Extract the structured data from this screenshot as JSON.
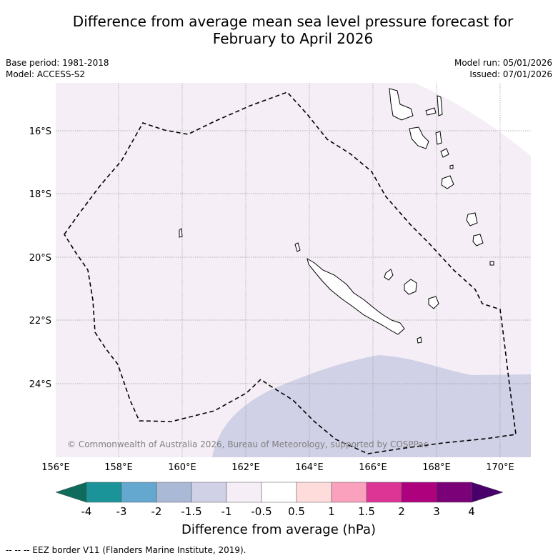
{
  "title_line1": "Difference from average mean sea level pressure forecast for",
  "title_line2": "February to April 2026",
  "base_period": "Base period: 1981-2018",
  "model": "Model: ACCESS-S2",
  "model_run": "Model run: 05/01/2026",
  "issued": "Issued: 07/01/2026",
  "lat_labels": [
    "16°S",
    "18°S",
    "20°S",
    "22°S",
    "24°S"
  ],
  "lon_labels": [
    "156°E",
    "158°E",
    "160°E",
    "162°E",
    "164°E",
    "166°E",
    "168°E",
    "170°E"
  ],
  "copyright": "© Commonwealth of Australia 2026, Bureau of Meteorology, supported by COSPPac",
  "colorbar": {
    "title": "Difference from average (hPa)",
    "labels": [
      "-4",
      "-3",
      "-2",
      "-1.5",
      "-1",
      "-0.5",
      "0.5",
      "1",
      "1.5",
      "2",
      "3",
      "4"
    ],
    "colors": [
      "#1b9499",
      "#64a8d0",
      "#a9b9d6",
      "#d0d0e6",
      "#f5eef6",
      "#ffffff",
      "#ffdcdc",
      "#f9a1bd",
      "#dc3596",
      "#ae017e",
      "#7a0177"
    ],
    "extend_low_color": "#0f6b5c",
    "extend_high_color": "#49006a"
  },
  "fields": {
    "light_purple": "#f5eef6",
    "lavender": "#d0d0e6"
  },
  "footnote": "--  --  -- EEZ border V11 (Flanders Marine Institute, 2019)."
}
